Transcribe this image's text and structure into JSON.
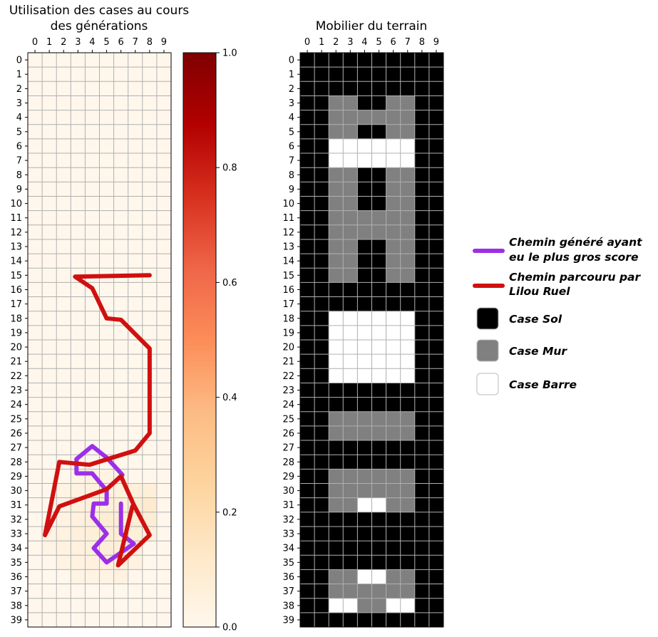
{
  "chart_data": [
    {
      "type": "heatmap",
      "title_lines": [
        "Utilisation des cases au cours",
        "des générations"
      ],
      "x_ticks": [
        "0",
        "1",
        "2",
        "3",
        "4",
        "5",
        "6",
        "7",
        "8",
        "9"
      ],
      "y_ticks": [
        "0",
        "1",
        "2",
        "3",
        "4",
        "5",
        "6",
        "7",
        "8",
        "9",
        "10",
        "11",
        "12",
        "13",
        "14",
        "15",
        "16",
        "17",
        "18",
        "19",
        "20",
        "21",
        "22",
        "23",
        "24",
        "25",
        "26",
        "27",
        "28",
        "29",
        "30",
        "31",
        "32",
        "33",
        "34",
        "35",
        "36",
        "37",
        "38",
        "39"
      ],
      "grid": true,
      "colormap": "OrRd",
      "vmin": 0.0,
      "vmax": 1.0,
      "colorbar_ticks": [
        "0.0",
        "0.2",
        "0.4",
        "0.6",
        "0.8",
        "1.0"
      ],
      "cells": [
        {
          "x": 3,
          "y": 29,
          "value": 0.03
        },
        {
          "x": 4,
          "y": 29,
          "value": 0.04
        },
        {
          "x": 5,
          "y": 29,
          "value": 0.03
        },
        {
          "x": 6,
          "y": 29,
          "value": 0.03
        },
        {
          "x": 2,
          "y": 30,
          "value": 0.03
        },
        {
          "x": 3,
          "y": 30,
          "value": 0.04
        },
        {
          "x": 4,
          "y": 30,
          "value": 0.05
        },
        {
          "x": 5,
          "y": 30,
          "value": 0.05
        },
        {
          "x": 6,
          "y": 30,
          "value": 0.05
        },
        {
          "x": 7,
          "y": 30,
          "value": 0.06
        },
        {
          "x": 8,
          "y": 30,
          "value": 0.07
        },
        {
          "x": 2,
          "y": 31,
          "value": 0.03
        },
        {
          "x": 3,
          "y": 31,
          "value": 0.05
        },
        {
          "x": 4,
          "y": 31,
          "value": 0.06
        },
        {
          "x": 5,
          "y": 31,
          "value": 0.07
        },
        {
          "x": 6,
          "y": 31,
          "value": 0.07
        },
        {
          "x": 7,
          "y": 31,
          "value": 0.08
        },
        {
          "x": 8,
          "y": 31,
          "value": 0.1
        },
        {
          "x": 2,
          "y": 32,
          "value": 0.04
        },
        {
          "x": 3,
          "y": 32,
          "value": 0.05
        },
        {
          "x": 4,
          "y": 32,
          "value": 0.07
        },
        {
          "x": 5,
          "y": 32,
          "value": 0.08
        },
        {
          "x": 6,
          "y": 32,
          "value": 0.08
        },
        {
          "x": 7,
          "y": 32,
          "value": 0.08
        },
        {
          "x": 8,
          "y": 32,
          "value": 0.08
        },
        {
          "x": 1,
          "y": 33,
          "value": 0.03
        },
        {
          "x": 2,
          "y": 33,
          "value": 0.04
        },
        {
          "x": 3,
          "y": 33,
          "value": 0.06
        },
        {
          "x": 4,
          "y": 33,
          "value": 0.07
        },
        {
          "x": 5,
          "y": 33,
          "value": 0.08
        },
        {
          "x": 6,
          "y": 33,
          "value": 0.08
        },
        {
          "x": 7,
          "y": 33,
          "value": 0.07
        },
        {
          "x": 8,
          "y": 33,
          "value": 0.05
        },
        {
          "x": 1,
          "y": 34,
          "value": 0.03
        },
        {
          "x": 2,
          "y": 34,
          "value": 0.04
        },
        {
          "x": 3,
          "y": 34,
          "value": 0.05
        },
        {
          "x": 4,
          "y": 34,
          "value": 0.06
        },
        {
          "x": 5,
          "y": 34,
          "value": 0.07
        },
        {
          "x": 6,
          "y": 34,
          "value": 0.07
        },
        {
          "x": 7,
          "y": 34,
          "value": 0.05
        },
        {
          "x": 2,
          "y": 35,
          "value": 0.03
        },
        {
          "x": 3,
          "y": 35,
          "value": 0.04
        },
        {
          "x": 4,
          "y": 35,
          "value": 0.05
        },
        {
          "x": 5,
          "y": 35,
          "value": 0.05
        },
        {
          "x": 6,
          "y": 35,
          "value": 0.05
        },
        {
          "x": 7,
          "y": 35,
          "value": 0.04
        },
        {
          "x": 3,
          "y": 36,
          "value": 0.03
        },
        {
          "x": 4,
          "y": 36,
          "value": 0.03
        },
        {
          "x": 5,
          "y": 36,
          "value": 0.03
        },
        {
          "x": 6,
          "y": 36,
          "value": 0.04
        }
      ],
      "series": [
        {
          "name": "Chemin parcouru par Lilou Ruel",
          "color": "#d01010",
          "points": [
            [
              8.5,
              15.5
            ],
            [
              3.3,
              15.6
            ],
            [
              4.5,
              16.4
            ],
            [
              5.5,
              18.5
            ],
            [
              6.5,
              18.6
            ],
            [
              8.5,
              20.6
            ],
            [
              8.5,
              26.5
            ],
            [
              7.5,
              27.7
            ],
            [
              4.3,
              28.7
            ],
            [
              2.2,
              28.5
            ],
            [
              1.2,
              33.6
            ],
            [
              2.2,
              31.6
            ],
            [
              5.5,
              30.4
            ],
            [
              6.5,
              29.5
            ],
            [
              7.4,
              31.5
            ],
            [
              8.5,
              33.6
            ],
            [
              6.3,
              35.7
            ],
            [
              7.3,
              31.6
            ]
          ]
        },
        {
          "name": "Chemin généré ayant eu le plus gros score",
          "color": "#9b30e8",
          "points": [
            [
              6.5,
              31.4
            ],
            [
              6.5,
              33.5
            ],
            [
              7.4,
              34.2
            ],
            [
              5.5,
              35.5
            ],
            [
              4.6,
              34.5
            ],
            [
              5.5,
              33.5
            ],
            [
              4.5,
              32.3
            ],
            [
              4.6,
              31.4
            ],
            [
              5.5,
              31.4
            ],
            [
              5.5,
              30.4
            ],
            [
              6.6,
              29.4
            ],
            [
              5.5,
              28.2
            ],
            [
              4.5,
              27.4
            ],
            [
              3.4,
              28.3
            ],
            [
              3.4,
              29.3
            ],
            [
              4.5,
              29.3
            ],
            [
              5.5,
              30.5
            ]
          ]
        }
      ]
    },
    {
      "type": "heatmap",
      "title": "Mobilier du terrain",
      "x_ticks": [
        "0",
        "1",
        "2",
        "3",
        "4",
        "5",
        "6",
        "7",
        "8",
        "9"
      ],
      "y_ticks": [
        "0",
        "1",
        "2",
        "3",
        "4",
        "5",
        "6",
        "7",
        "8",
        "9",
        "10",
        "11",
        "12",
        "13",
        "14",
        "15",
        "16",
        "17",
        "18",
        "19",
        "20",
        "21",
        "22",
        "23",
        "24",
        "25",
        "26",
        "27",
        "28",
        "29",
        "30",
        "31",
        "32",
        "33",
        "34",
        "35",
        "36",
        "37",
        "38",
        "39"
      ],
      "grid": true,
      "codes": {
        "0": "Case Sol",
        "1": "Case Mur",
        "2": "Case Barre"
      },
      "colors": {
        "0": "#000000",
        "1": "#808080",
        "2": "#ffffff"
      },
      "rows": [
        "0000000000",
        "0000000000",
        "0000000000",
        "0011001100",
        "0011111100",
        "0011001100",
        "0022222200",
        "0022222200",
        "0011001100",
        "0011001100",
        "0011001100",
        "0011111100",
        "0011111100",
        "0011001100",
        "0011001100",
        "0011001100",
        "0000000000",
        "0000000000",
        "0022222200",
        "0022222200",
        "0022222200",
        "0022222200",
        "0022222200",
        "0000000000",
        "0000000000",
        "0011111100",
        "0011111100",
        "0000000000",
        "0000000000",
        "0011111100",
        "0011111100",
        "0011221100",
        "0000000000",
        "0000000000",
        "0000000000",
        "0000000000",
        "0011221100",
        "0011111100",
        "0022112200",
        "0000000000"
      ]
    }
  ],
  "legend": {
    "items": [
      {
        "kind": "line",
        "color": "#9b30e8",
        "lines": [
          "Chemin généré ayant",
          "eu le plus gros score"
        ]
      },
      {
        "kind": "line",
        "color": "#d01010",
        "lines": [
          "Chemin parcouru par",
          "Lilou Ruel"
        ]
      },
      {
        "kind": "box",
        "color": "#000000",
        "lines": [
          "Case Sol"
        ]
      },
      {
        "kind": "box",
        "color": "#808080",
        "lines": [
          "Case Mur"
        ]
      },
      {
        "kind": "box",
        "color": "#ffffff",
        "lines": [
          "Case Barre"
        ]
      }
    ]
  }
}
